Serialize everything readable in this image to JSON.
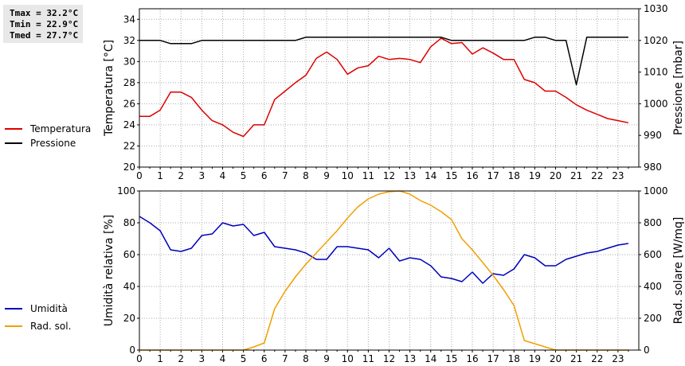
{
  "stats": {
    "tmax": "Tmax = 32.2°C",
    "tmin": "Tmin = 22.9°C",
    "tmed": "Tmed = 27.7°C"
  },
  "colors": {
    "temperature": "#dd0000",
    "pressure": "#000000",
    "humidity": "#0000bb",
    "radiation": "#f0a000",
    "grid": "#aaaaaa"
  },
  "chart_data": [
    {
      "type": "line",
      "grid": true,
      "legend_position": "left",
      "xlabel": "",
      "xlim": [
        0,
        24
      ],
      "xticks": [
        0,
        1,
        2,
        3,
        4,
        5,
        6,
        7,
        8,
        9,
        10,
        11,
        12,
        13,
        14,
        15,
        16,
        17,
        18,
        19,
        20,
        21,
        22,
        23
      ],
      "y_left": {
        "label": "Temperatura [°C]",
        "lim": [
          20,
          35
        ],
        "ticks": [
          20,
          22,
          24,
          26,
          28,
          30,
          32,
          34
        ]
      },
      "y_right": {
        "label": "Pressione [mbar]",
        "lim": [
          980,
          1030
        ],
        "ticks": [
          980,
          990,
          1000,
          1010,
          1020,
          1030
        ]
      },
      "series": [
        {
          "name": "Temperatura",
          "axis": "left",
          "color": "#dd0000",
          "x": [
            0,
            0.5,
            1,
            1.5,
            2,
            2.5,
            3,
            3.5,
            4,
            4.5,
            5,
            5.5,
            6,
            6.5,
            7,
            7.5,
            8,
            8.5,
            9,
            9.5,
            10,
            10.5,
            11,
            11.5,
            12,
            12.5,
            13,
            13.5,
            14,
            14.5,
            15,
            15.5,
            16,
            16.5,
            17,
            17.5,
            18,
            18.5,
            19,
            19.5,
            20,
            20.5,
            21,
            21.5,
            22,
            22.5,
            23,
            23.5
          ],
          "y": [
            24.8,
            24.8,
            25.4,
            27.1,
            27.1,
            26.6,
            25.4,
            24.4,
            24.0,
            23.3,
            22.9,
            24.0,
            24.0,
            26.4,
            27.2,
            28.0,
            28.7,
            30.3,
            30.9,
            30.2,
            28.8,
            29.4,
            29.6,
            30.5,
            30.2,
            30.3,
            30.2,
            29.9,
            31.4,
            32.2,
            31.7,
            31.8,
            30.7,
            31.3,
            30.8,
            30.2,
            30.2,
            28.3,
            28.0,
            27.2,
            27.2,
            26.6,
            25.9,
            25.4,
            25.0,
            24.6,
            24.4,
            24.2
          ]
        },
        {
          "name": "Pressione",
          "axis": "right",
          "color": "#000000",
          "x": [
            0,
            1,
            1.5,
            2.5,
            3,
            7.5,
            8,
            14.5,
            15,
            18.5,
            19,
            19.5,
            20,
            20.5,
            21,
            21.5,
            23.5
          ],
          "y": [
            1020,
            1020,
            1019,
            1019,
            1020,
            1020,
            1021,
            1021,
            1020,
            1020,
            1021,
            1021,
            1020,
            1020,
            1006,
            1021,
            1021
          ]
        }
      ]
    },
    {
      "type": "line",
      "grid": true,
      "legend_position": "left",
      "xlabel": "",
      "xlim": [
        0,
        24
      ],
      "xticks": [
        0,
        1,
        2,
        3,
        4,
        5,
        6,
        7,
        8,
        9,
        10,
        11,
        12,
        13,
        14,
        15,
        16,
        17,
        18,
        19,
        20,
        21,
        22,
        23
      ],
      "y_left": {
        "label": "Umidità relativa [%]",
        "lim": [
          0,
          100
        ],
        "ticks": [
          0,
          20,
          40,
          60,
          80,
          100
        ]
      },
      "y_right": {
        "label": "Rad. solare [W/mq]",
        "lim": [
          0,
          1000
        ],
        "ticks": [
          0,
          200,
          400,
          600,
          800,
          1000
        ]
      },
      "series": [
        {
          "name": "Umidità",
          "axis": "left",
          "color": "#0000bb",
          "x": [
            0,
            0.5,
            1,
            1.5,
            2,
            2.5,
            3,
            3.5,
            4,
            4.5,
            5,
            5.5,
            6,
            6.5,
            7,
            7.5,
            8,
            8.5,
            9,
            9.5,
            10,
            10.5,
            11,
            11.5,
            12,
            12.5,
            13,
            13.5,
            14,
            14.5,
            15,
            15.5,
            16,
            16.5,
            17,
            17.5,
            18,
            18.5,
            19,
            19.5,
            20,
            20.5,
            21,
            21.5,
            22,
            22.5,
            23,
            23.5
          ],
          "y": [
            84,
            80,
            75,
            63,
            62,
            64,
            72,
            73,
            80,
            78,
            79,
            72,
            74,
            65,
            64,
            63,
            61,
            57,
            57,
            65,
            65,
            64,
            63,
            58,
            64,
            56,
            58,
            57,
            53,
            46,
            45,
            43,
            49,
            42,
            48,
            47,
            51,
            60,
            58,
            53,
            53,
            57,
            59,
            61,
            62,
            64,
            66,
            67
          ]
        },
        {
          "name": "Rad. sol.",
          "axis": "right",
          "color": "#f0a000",
          "x": [
            0,
            1,
            2,
            3,
            4,
            5,
            5.5,
            6,
            6.5,
            7,
            7.5,
            8,
            8.5,
            9,
            9.5,
            10,
            10.5,
            11,
            11.5,
            12,
            12.5,
            13,
            13.5,
            14,
            14.5,
            15,
            15.5,
            16,
            16.5,
            17,
            17.5,
            18,
            18.5,
            19,
            19.5,
            20,
            21,
            22,
            23,
            23.5
          ],
          "y": [
            0,
            0,
            0,
            0,
            0,
            0,
            20,
            45,
            260,
            370,
            460,
            540,
            610,
            680,
            750,
            830,
            900,
            950,
            980,
            995,
            1000,
            980,
            940,
            910,
            870,
            820,
            700,
            630,
            550,
            470,
            380,
            280,
            60,
            40,
            20,
            0,
            0,
            0,
            0,
            0
          ]
        }
      ]
    }
  ]
}
